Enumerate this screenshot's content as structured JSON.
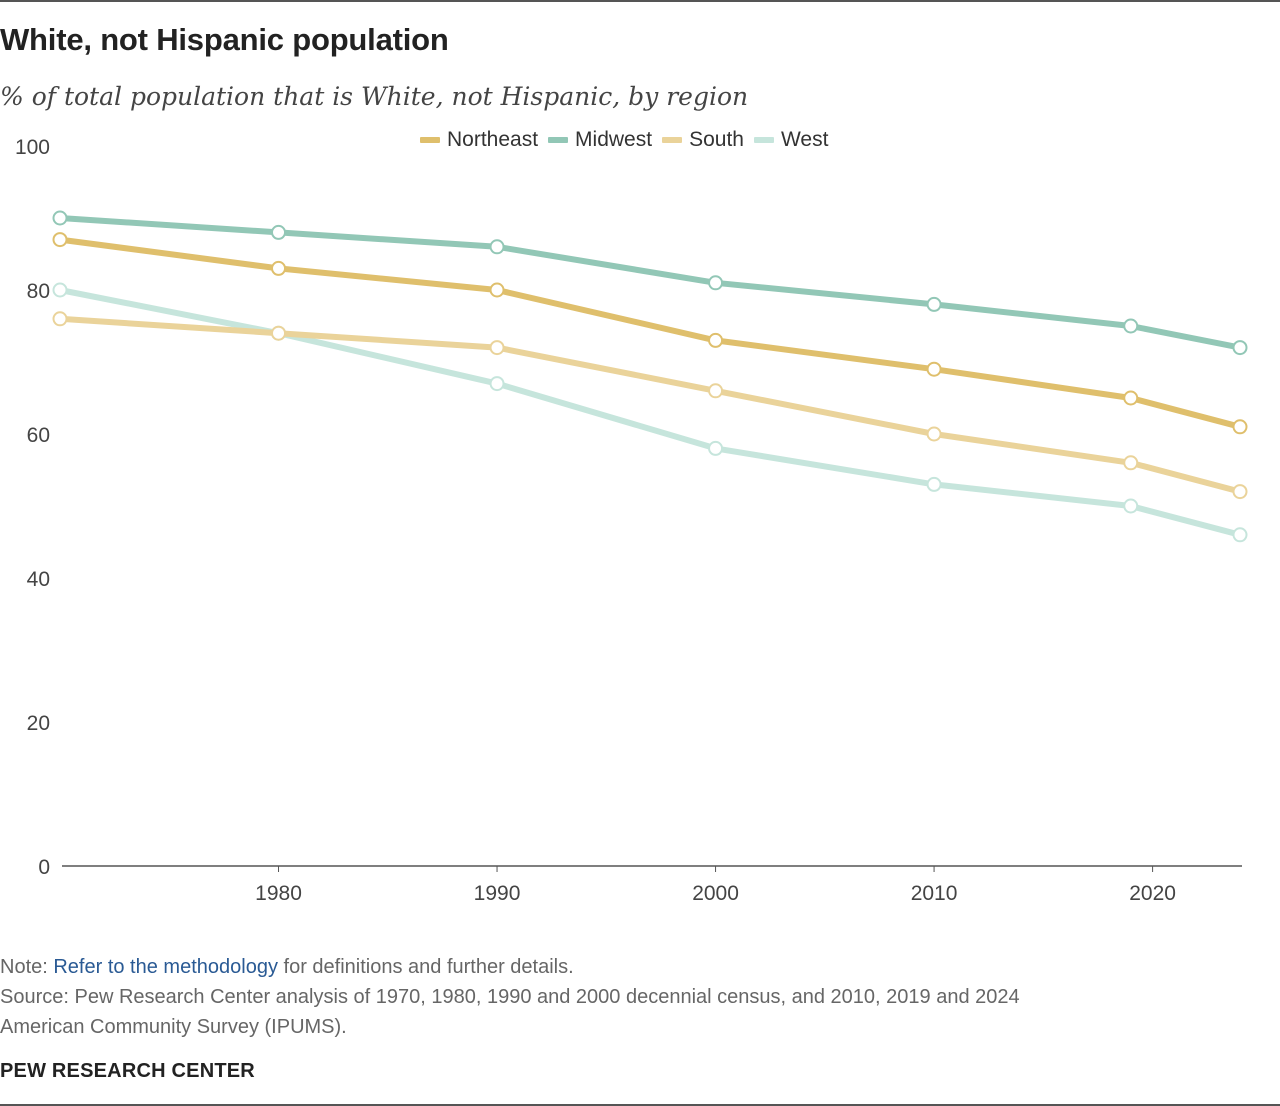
{
  "header": {
    "title": "White, not Hispanic population",
    "subtitle": "% of total population that is White, not Hispanic, by region"
  },
  "colors": {
    "Northeast": "#dfbf6c",
    "Midwest": "#92c7b6",
    "South": "#ead39a",
    "West": "#c6e5dc",
    "axis": "#555555",
    "tick_text": "#444444"
  },
  "chart_data": {
    "type": "line",
    "title": "White, not Hispanic population",
    "subtitle": "% of total population that is White, not Hispanic, by region",
    "xlabel": "",
    "ylabel": "",
    "x": [
      1970,
      1980,
      1990,
      2000,
      2010,
      2019,
      2024
    ],
    "x_tick_labels": [
      "1980",
      "1990",
      "2000",
      "2010",
      "2020"
    ],
    "x_tick_values": [
      1980,
      1990,
      2000,
      2010,
      2020
    ],
    "y_tick_labels": [
      "0",
      "20",
      "40",
      "60",
      "80",
      "100"
    ],
    "y_tick_values": [
      0,
      20,
      40,
      60,
      80,
      100
    ],
    "xlim": [
      1970,
      2024
    ],
    "ylim": [
      0,
      100
    ],
    "grid": false,
    "legend_position": "top-center",
    "series": [
      {
        "name": "Northeast",
        "values": [
          87,
          83,
          80,
          73,
          69,
          65,
          61
        ]
      },
      {
        "name": "Midwest",
        "values": [
          90,
          88,
          86,
          81,
          78,
          75,
          72
        ]
      },
      {
        "name": "South",
        "values": [
          76,
          74,
          72,
          66,
          60,
          56,
          52
        ]
      },
      {
        "name": "West",
        "values": [
          80,
          74,
          67,
          58,
          53,
          50,
          46
        ]
      }
    ]
  },
  "legend": {
    "items": [
      {
        "label": "Northeast"
      },
      {
        "label": "Midwest"
      },
      {
        "label": "South"
      },
      {
        "label": "West"
      }
    ]
  },
  "footer": {
    "note_prefix": "Note: ",
    "note_link": "Refer to the methodology",
    "note_suffix": " for definitions and further details.",
    "source_line1": "Source: Pew Research Center analysis of 1970, 1980, 1990 and 2000 decennial census, and 2010, 2019 and 2024",
    "source_line2": "American Community Survey (IPUMS).",
    "brand": "PEW RESEARCH CENTER"
  }
}
